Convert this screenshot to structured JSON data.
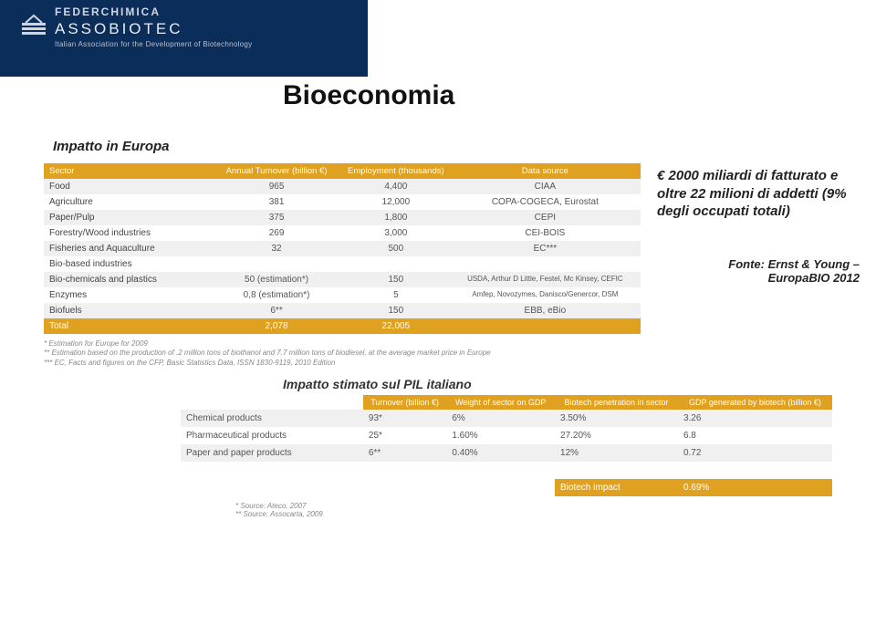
{
  "header": {
    "brand_top": "FEDERCHIMICA",
    "brand_mid": "ASSOBIOTEC",
    "brand_sub": "Italian Association for the Development of Biotechnology"
  },
  "title_main": "Bioeconomia",
  "title_sub_eu": "Impatto in Europa",
  "table1": {
    "headers": [
      "Sector",
      "Annual Turnover (billion €)",
      "Employment (thousands)",
      "Data source"
    ],
    "rows": [
      {
        "cells": [
          "Food",
          "965",
          "4,400",
          "CIAA"
        ],
        "cls": "even"
      },
      {
        "cells": [
          "Agriculture",
          "381",
          "12,000",
          "COPA-COGECA, Eurostat"
        ],
        "cls": "odd"
      },
      {
        "cells": [
          "Paper/Pulp",
          "375",
          "1,800",
          "CEPI"
        ],
        "cls": "even"
      },
      {
        "cells": [
          "Forestry/Wood industries",
          "269",
          "3,000",
          "CEI-BOIS"
        ],
        "cls": "odd"
      },
      {
        "cells": [
          "Fisheries and Aquaculture",
          "32",
          "500",
          "EC***"
        ],
        "cls": "even"
      },
      {
        "cells": [
          "Bio-based industries",
          "",
          "",
          ""
        ],
        "cls": "nodata"
      },
      {
        "cells": [
          "Bio-chemicals and plastics",
          "50 (estimation*)",
          "150",
          "USDA, Arthur D Little, Festel, Mc Kinsey, CEFIC"
        ],
        "cls": "even"
      },
      {
        "cells": [
          "Enzymes",
          "0,8 (estimation*)",
          "5",
          "Amfep, Novozymes, Danisco/Genercor, DSM"
        ],
        "cls": "odd"
      },
      {
        "cells": [
          "Biofuels",
          "6**",
          "150",
          "EBB, eBio"
        ],
        "cls": "even"
      },
      {
        "cells": [
          "Total",
          "2,078",
          "22,005",
          ""
        ],
        "cls": "total"
      }
    ],
    "footnotes": [
      "*   Estimation for Europe for 2009",
      "**  Estimation based on the production of .2 million tons of biothanol and 7.7 million tons of biodiesel, at the average market price in Europe",
      "*** EC, Facts and figures on the CFP, Basic Statistics Data, ISSN 1830-9119, 2010 Edition"
    ]
  },
  "fact_box": "€ 2000 miliardi di fatturato e oltre 22 milioni di addetti (9% degli occupati totali)",
  "fonte_line1": "Fonte: Ernst & Young –",
  "fonte_line2": "EuropaBIO 2012",
  "title_sub_it": "Impatto stimato sul PIL italiano",
  "table2": {
    "headers": [
      "",
      "Turnover (billion €)",
      "Weight of sector on GDP",
      "Biotech penetration in sector",
      "GDP generated by biotech (billion €)"
    ],
    "rows": [
      {
        "cells": [
          "Chemical products",
          "93*",
          "6%",
          "3.50%",
          "3.26"
        ],
        "cls": "even"
      },
      {
        "cells": [
          "Pharmaceutical products",
          "25*",
          "1.60%",
          "27.20%",
          "6.8"
        ],
        "cls": "odd"
      },
      {
        "cells": [
          "Paper and paper products",
          "6**",
          "0.40%",
          "12%",
          "0.72"
        ],
        "cls": "even"
      }
    ],
    "impact_label": "Biotech impact",
    "impact_value": "0.69%",
    "footnotes": [
      "*   Source: Ateco, 2007",
      "**  Source: Assocarta, 2009"
    ]
  },
  "colors": {
    "header_bg": "#0b2d5a",
    "orange": "#e0a020",
    "row_even": "#f0f0f0",
    "row_odd": "#ffffff",
    "text": "#333333"
  }
}
